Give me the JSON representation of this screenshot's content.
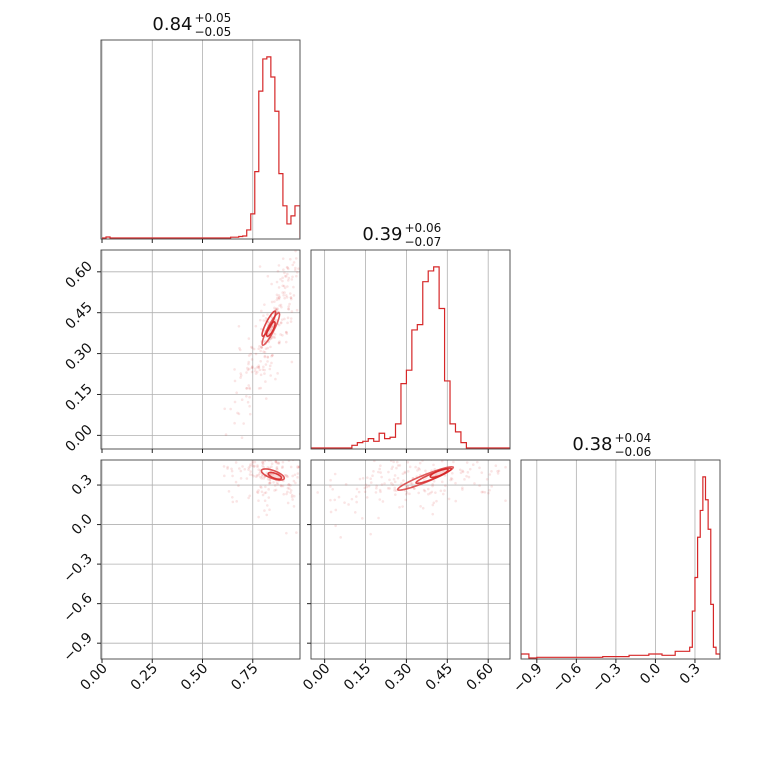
{
  "chart_data": {
    "type": "corner",
    "color": "#d62728",
    "grid": true,
    "parameters": [
      {
        "title": {
          "value": "0.84",
          "plus": "+0.05",
          "minus": "−0.05"
        },
        "range": [
          -0.005,
          0.985
        ],
        "ticks": [
          0.0,
          0.25,
          0.5,
          0.75
        ],
        "tick_labels": [
          "0.00",
          "0.25",
          "0.50",
          "0.75"
        ],
        "histogram": {
          "type": "step",
          "bin_edges": [
            0.0,
            0.02,
            0.04,
            0.6,
            0.64,
            0.68,
            0.7,
            0.72,
            0.74,
            0.76,
            0.78,
            0.8,
            0.82,
            0.84,
            0.86,
            0.88,
            0.9,
            0.92,
            0.94,
            0.96,
            0.985
          ],
          "counts": [
            0.0,
            1.0,
            0.0,
            0.0,
            0.8,
            1.5,
            2.0,
            8.0,
            24.0,
            66.0,
            146.0,
            178.0,
            180.0,
            160.0,
            126.0,
            64.0,
            32.0,
            14.0,
            22.0,
            32.0
          ]
        }
      },
      {
        "title": {
          "value": "0.39",
          "plus": "+0.06",
          "minus": "−0.07"
        },
        "range": [
          -0.05,
          0.68
        ],
        "ticks": [
          0.0,
          0.15,
          0.3,
          0.45,
          0.6
        ],
        "tick_labels": [
          "0.00",
          "0.15",
          "0.30",
          "0.45",
          "0.60"
        ],
        "histogram": {
          "type": "step",
          "bin_edges": [
            -0.05,
            0.1,
            0.12,
            0.14,
            0.16,
            0.18,
            0.2,
            0.22,
            0.24,
            0.26,
            0.28,
            0.3,
            0.32,
            0.34,
            0.36,
            0.38,
            0.4,
            0.42,
            0.44,
            0.46,
            0.48,
            0.5,
            0.52,
            0.68
          ],
          "counts": [
            0.0,
            2.0,
            4.0,
            5.0,
            7.0,
            5.0,
            11.0,
            7.0,
            8.0,
            18.0,
            48.0,
            58.0,
            88.0,
            92.0,
            124.0,
            132.0,
            135.0,
            104.0,
            50.0,
            18.0,
            12.0,
            4.0,
            0.0
          ]
        }
      },
      {
        "title": {
          "value": "0.38",
          "plus": "+0.04",
          "minus": "−0.06"
        },
        "range": [
          -1.02,
          0.49
        ],
        "ticks": [
          -0.9,
          -0.6,
          -0.3,
          0.0,
          0.3
        ],
        "tick_labels": [
          "−0.9",
          "−0.6",
          "−0.3",
          "0.0",
          "0.3"
        ],
        "histogram": {
          "type": "step",
          "bin_edges": [
            -1.02,
            -0.96,
            -0.9,
            -0.4,
            -0.2,
            -0.05,
            0.05,
            0.15,
            0.26,
            0.28,
            0.3,
            0.32,
            0.34,
            0.36,
            0.38,
            0.4,
            0.42,
            0.44,
            0.46,
            0.49
          ],
          "counts": [
            3.0,
            0.0,
            0.5,
            1.0,
            2.0,
            3.0,
            2.0,
            5.0,
            8.0,
            35.0,
            60.0,
            90.0,
            110.0,
            135.0,
            118.0,
            96.0,
            40.0,
            8.0,
            3.0
          ]
        }
      }
    ],
    "scatter_note": "2D marginals shown as faint scatter samples with density contours",
    "pairs": [
      {
        "x_param": 0,
        "y_param": 1,
        "contours": [
          {
            "cx": 0.84,
            "cy": 0.39,
            "rx": 0.09,
            "ry": 0.012,
            "angle_deg": 63,
            "opacity": 0.75
          },
          {
            "cx": 0.83,
            "cy": 0.41,
            "rx": 0.07,
            "ry": 0.01,
            "angle_deg": 63,
            "opacity": 0.85
          },
          {
            "cx": 0.84,
            "cy": 0.39,
            "rx": 0.04,
            "ry": 0.008,
            "angle_deg": 63,
            "opacity": 0.95
          }
        ],
        "scatter_trend": {
          "x_range": [
            0.6,
            0.99
          ],
          "slope": -0.55
        }
      },
      {
        "x_param": 0,
        "y_param": 2,
        "contours": [
          {
            "cx": 0.85,
            "cy": 0.38,
            "rx": 0.06,
            "ry": 0.03,
            "angle_deg": -20,
            "opacity": 0.8
          },
          {
            "cx": 0.86,
            "cy": 0.37,
            "rx": 0.035,
            "ry": 0.018,
            "angle_deg": -20,
            "opacity": 0.9
          }
        ],
        "scatter_trend": {
          "x_range": [
            0.6,
            0.99
          ],
          "slope": -4.0
        }
      },
      {
        "x_param": 1,
        "y_param": 2,
        "contours": [
          {
            "cx": 0.37,
            "cy": 0.35,
            "rx": 0.11,
            "ry": 0.028,
            "angle_deg": 22,
            "opacity": 0.75
          },
          {
            "cx": 0.4,
            "cy": 0.37,
            "rx": 0.07,
            "ry": 0.02,
            "angle_deg": 22,
            "opacity": 0.85
          },
          {
            "cx": 0.42,
            "cy": 0.39,
            "rx": 0.035,
            "ry": 0.012,
            "angle_deg": 22,
            "opacity": 0.95
          }
        ],
        "scatter_trend": {
          "x_range": [
            0.0,
            0.6
          ],
          "slope": 2.2
        }
      }
    ]
  }
}
